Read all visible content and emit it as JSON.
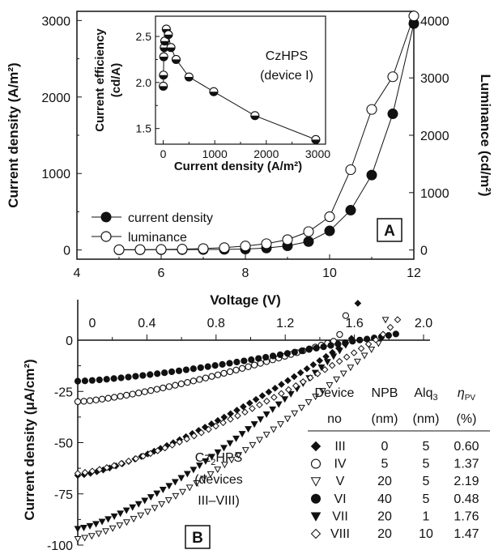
{
  "chart_data": [
    {
      "type": "line",
      "panel_label": "A",
      "xlabel": "Voltage (V)",
      "ylabel_left": "Current density (A/m²)",
      "ylabel_right": "Luminance (cd/m²)",
      "xlim": [
        4,
        12
      ],
      "ylim_left": [
        0,
        3000
      ],
      "ylim_right": [
        0,
        4000
      ],
      "x_ticks": [
        "4",
        "6",
        "8",
        "10",
        "12"
      ],
      "y_left_ticks": [
        "0",
        "1000",
        "2000",
        "3000"
      ],
      "y_right_ticks": [
        "0",
        "1000",
        "2000",
        "3000",
        "4000"
      ],
      "legend_position": "bottom-left",
      "series": [
        {
          "name": "current density",
          "marker": "filled-circle",
          "axis": "left",
          "x": [
            5,
            5.5,
            6,
            6.5,
            7,
            7.5,
            8,
            8.5,
            9,
            9.5,
            10,
            10.5,
            11,
            11.5,
            12
          ],
          "y": [
            2,
            3,
            4,
            5,
            6,
            8,
            12,
            25,
            55,
            110,
            250,
            520,
            980,
            1780,
            2960
          ]
        },
        {
          "name": "luminance",
          "marker": "open-circle",
          "axis": "right",
          "x": [
            5,
            5.5,
            6,
            6.5,
            7,
            7.5,
            8,
            8.5,
            9,
            9.5,
            10,
            10.5,
            11,
            11.5,
            12
          ],
          "y": [
            5,
            7,
            10,
            15,
            25,
            40,
            70,
            110,
            180,
            320,
            580,
            1400,
            2450,
            3020,
            4080
          ]
        }
      ]
    },
    {
      "type": "line",
      "inset_of": "A",
      "title_lines": [
        "CzHPS",
        "(device I)"
      ],
      "xlabel": "Current density (A/m²)",
      "ylabel_line1": "Current efficiency",
      "ylabel_line2": "(cd/A)",
      "xlim": [
        -150,
        3150
      ],
      "ylim": [
        1.33,
        2.72
      ],
      "x_ticks": [
        "0",
        "1000",
        "2000",
        "3000"
      ],
      "y_ticks": [
        "1.5",
        "2.0",
        "2.5"
      ],
      "series": [
        {
          "marker": "half-filled-circle",
          "x": [
            2,
            5,
            10,
            20,
            30,
            60,
            100,
            150,
            250,
            500,
            980,
            1780,
            2960
          ],
          "y": [
            1.96,
            2.08,
            2.28,
            2.38,
            2.45,
            2.58,
            2.52,
            2.38,
            2.25,
            2.06,
            1.9,
            1.64,
            1.38
          ]
        }
      ]
    },
    {
      "type": "scatter",
      "panel_label": "B",
      "subtitle_lines": [
        "Cz₂HPS",
        "(devices",
        "III–VIII)"
      ],
      "xlabel": "",
      "ylabel": "Current density (μA/cm²)",
      "xlim": [
        0,
        2.0
      ],
      "ylim": [
        -100,
        0
      ],
      "x_ticks": [
        "0",
        "0.4",
        "0.8",
        "1.2",
        "1.6",
        "2.0"
      ],
      "y_ticks": [
        "0",
        "-25",
        "-50",
        "-75",
        "-100"
      ],
      "table": {
        "header_row1": [
          "Device",
          "NPB",
          "Alq₃",
          "ηPV"
        ],
        "header_row2": [
          "no",
          "(nm)",
          "(nm)",
          "(%)"
        ],
        "eta_main": "η",
        "eta_sub": "PV",
        "rows": [
          {
            "marker": "filled-diamond",
            "device": "III",
            "npb": "0",
            "alq": "5",
            "eta": "0.60"
          },
          {
            "marker": "open-circle",
            "device": "IV",
            "npb": "5",
            "alq": "5",
            "eta": "1.37"
          },
          {
            "marker": "open-triangle-down",
            "device": "V",
            "npb": "20",
            "alq": "5",
            "eta": "2.19"
          },
          {
            "marker": "filled-circle",
            "device": "VI",
            "npb": "40",
            "alq": "5",
            "eta": "0.48"
          },
          {
            "marker": "filled-triangle-down",
            "device": "VII",
            "npb": "20",
            "alq": "1",
            "eta": "1.76"
          },
          {
            "marker": "open-diamond",
            "device": "VIII",
            "npb": "20",
            "alq": "10",
            "eta": "1.47"
          }
        ]
      },
      "series": [
        {
          "name": "III",
          "marker": "filled-diamond",
          "voc": 1.58,
          "isc": -66,
          "x_end": 1.62,
          "y_end": 18
        },
        {
          "name": "IV",
          "marker": "open-circle",
          "voc": 1.5,
          "isc": -30,
          "x_end": 1.55,
          "y_end": 12
        },
        {
          "name": "V",
          "marker": "open-triangle-down",
          "voc": 1.76,
          "isc": -97,
          "x_end": 1.78,
          "y_end": 10
        },
        {
          "name": "VI",
          "marker": "filled-circle",
          "voc": 1.62,
          "isc": -20,
          "x_end": 1.84,
          "y_end": 3
        },
        {
          "name": "VII",
          "marker": "filled-triangle-down",
          "voc": 1.58,
          "isc": -92,
          "x_end": 1.55,
          "y_end": 8
        },
        {
          "name": "VIII",
          "marker": "open-diamond",
          "voc": 1.72,
          "isc": -65,
          "x_end": 1.85,
          "y_end": 10
        }
      ]
    }
  ]
}
